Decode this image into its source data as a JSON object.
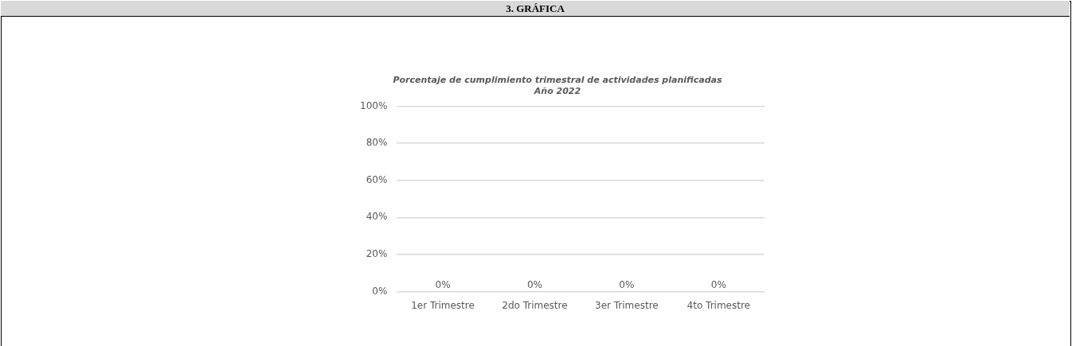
{
  "chart_data": {
    "type": "bar",
    "title": "Porcentaje de cumplimiento trimestral de actividades planificadas",
    "subtitle": "Año 2022",
    "annotations": [
      "3. GRÁFICA"
    ],
    "categories": [
      "1er Trimestre",
      "2do Trimestre",
      "3er Trimestre",
      "4to Trimestre"
    ],
    "values": [
      0,
      0,
      0,
      0
    ],
    "value_labels": [
      "0%",
      "0%",
      "0%",
      "0%"
    ],
    "ylim": [
      0,
      100
    ],
    "yticks": [
      {
        "value": 0,
        "label": "0%"
      },
      {
        "value": 20,
        "label": "20%"
      },
      {
        "value": 40,
        "label": "40%"
      },
      {
        "value": 60,
        "label": "60%"
      },
      {
        "value": 80,
        "label": "80%"
      },
      {
        "value": 100,
        "label": "100%"
      }
    ],
    "grid": "y",
    "legend": false
  }
}
